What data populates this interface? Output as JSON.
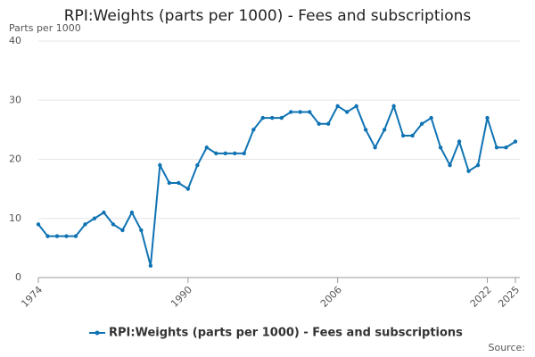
{
  "chart_data": {
    "type": "line",
    "title": "RPI:Weights (parts per 1000) - Fees and subscriptions",
    "y_label": "Parts per 1000",
    "source": "Source:",
    "x": [
      1974,
      1975,
      1976,
      1977,
      1978,
      1979,
      1980,
      1981,
      1982,
      1983,
      1984,
      1985,
      1986,
      1987,
      1988,
      1989,
      1990,
      1991,
      1992,
      1993,
      1994,
      1995,
      1996,
      1997,
      1998,
      1999,
      2000,
      2001,
      2002,
      2003,
      2004,
      2005,
      2006,
      2007,
      2008,
      2009,
      2010,
      2011,
      2012,
      2013,
      2014,
      2015,
      2016,
      2017,
      2018,
      2019,
      2020,
      2021,
      2022,
      2023,
      2024,
      2025
    ],
    "series": [
      {
        "name": "RPI:Weights (parts per 1000) - Fees and subscriptions",
        "color": "#0f73b3",
        "values": [
          9,
          7,
          7,
          7,
          7,
          9,
          10,
          11,
          9,
          8,
          11,
          8,
          2,
          19,
          16,
          16,
          15,
          19,
          22,
          21,
          21,
          21,
          21,
          25,
          27,
          27,
          27,
          28,
          28,
          28,
          26,
          26,
          29,
          28,
          29,
          25,
          22,
          25,
          29,
          24,
          24,
          26,
          27,
          22,
          19,
          23,
          18,
          19,
          27,
          22,
          22,
          23
        ]
      }
    ],
    "xlim": [
      1974,
      2025
    ],
    "xticks": [
      1974,
      1990,
      2006,
      2022,
      2025
    ],
    "ylim": [
      0,
      40
    ],
    "yticks": [
      0,
      10,
      20,
      30,
      40
    ],
    "grid": true,
    "legend": "bottom"
  }
}
